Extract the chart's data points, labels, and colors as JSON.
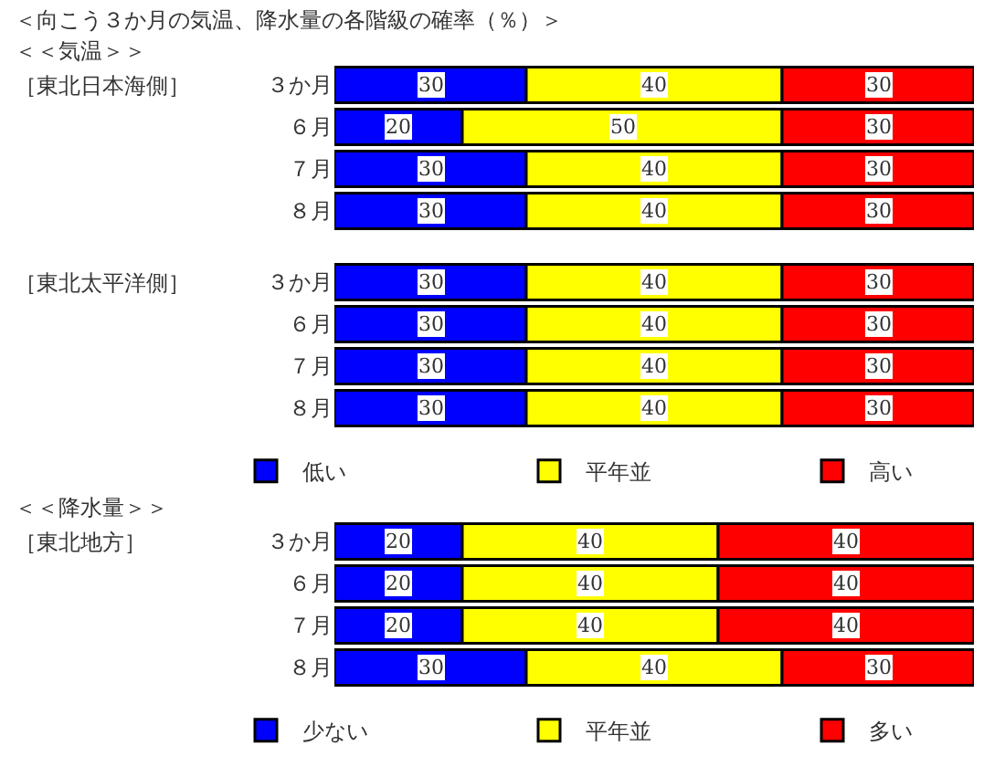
{
  "chart_data": [
    {
      "type": "bar",
      "orientation": "horizontal",
      "stacked": true,
      "title": "＜向こう３か月の気温、降水量の各階級の確率（％）＞",
      "annotations": [
        "＜＜気温＞＞"
      ],
      "ylabel": "［東北日本海側］",
      "categories": [
        "３か月",
        "６月",
        "７月",
        "８月"
      ],
      "xlim": [
        0,
        100
      ],
      "tick_labels": false,
      "data_labels": true,
      "legend": false,
      "series": [
        {
          "color": "#0000ff",
          "values": [
            30,
            20,
            30,
            30
          ]
        },
        {
          "color": "#ffff00",
          "values": [
            40,
            50,
            40,
            40
          ]
        },
        {
          "color": "#ff0000",
          "values": [
            30,
            30,
            30,
            30
          ]
        }
      ]
    },
    {
      "type": "bar",
      "orientation": "horizontal",
      "stacked": true,
      "ylabel": "［東北太平洋側］",
      "categories": [
        "３か月",
        "６月",
        "７月",
        "８月"
      ],
      "xlim": [
        0,
        100
      ],
      "tick_labels": false,
      "data_labels": true,
      "legend": "bottom",
      "series": [
        {
          "name": "低い",
          "color": "#0000ff",
          "values": [
            30,
            30,
            30,
            30
          ]
        },
        {
          "name": "平年並",
          "color": "#ffff00",
          "values": [
            40,
            40,
            40,
            40
          ]
        },
        {
          "name": "高い",
          "color": "#ff0000",
          "values": [
            30,
            30,
            30,
            30
          ]
        }
      ]
    },
    {
      "type": "bar",
      "orientation": "horizontal",
      "stacked": true,
      "annotations": [
        "＜＜降水量＞＞"
      ],
      "ylabel": "［東北地方］",
      "categories": [
        "３か月",
        "６月",
        "７月",
        "８月"
      ],
      "xlim": [
        0,
        100
      ],
      "tick_labels": false,
      "data_labels": true,
      "legend": "bottom",
      "series": [
        {
          "name": "少ない",
          "color": "#0000ff",
          "values": [
            20,
            20,
            20,
            30
          ]
        },
        {
          "name": "平年並",
          "color": "#ffff00",
          "values": [
            40,
            40,
            40,
            40
          ]
        },
        {
          "name": "多い",
          "color": "#ff0000",
          "values": [
            40,
            40,
            40,
            30
          ]
        }
      ]
    }
  ]
}
